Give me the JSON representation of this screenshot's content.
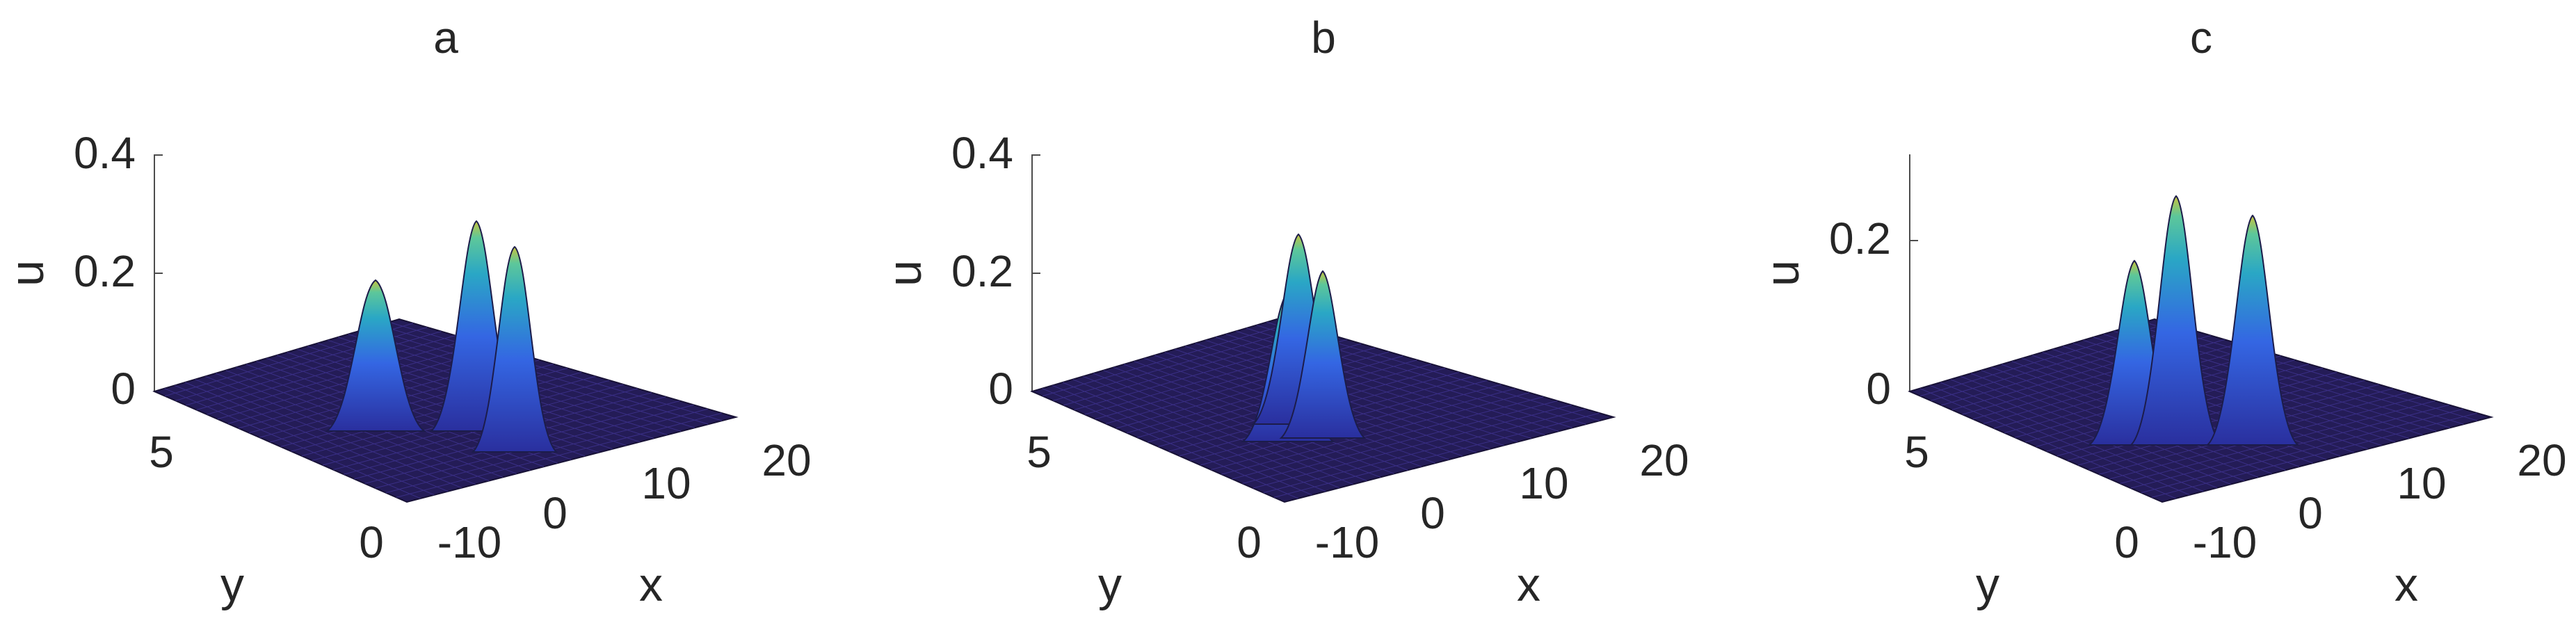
{
  "chart_data": [
    {
      "type": "surface",
      "title": "a",
      "xlabel": "x",
      "ylabel": "y",
      "zlabel": "u",
      "xlim": [
        -20,
        20
      ],
      "ylim": [
        0,
        6
      ],
      "zlim": [
        0,
        0.4
      ],
      "x_ticks": [
        "-10",
        "0",
        "10",
        "20"
      ],
      "y_ticks": [
        "0",
        "5"
      ],
      "z_ticks": [
        "0",
        "0.2",
        "0.4"
      ],
      "peaks": [
        {
          "x": -2,
          "y": 5.0,
          "u": 0.25
        },
        {
          "x": 7,
          "y": 4.6,
          "u": 0.37
        },
        {
          "x": 9,
          "y": 3.0,
          "u": 0.33
        }
      ]
    },
    {
      "type": "surface",
      "title": "b",
      "xlabel": "x",
      "ylabel": "y",
      "zlabel": "u",
      "xlim": [
        -20,
        20
      ],
      "ylim": [
        0,
        6
      ],
      "zlim": [
        0,
        0.4
      ],
      "x_ticks": [
        "-10",
        "0",
        "10",
        "20"
      ],
      "y_ticks": [
        "0",
        "5"
      ],
      "z_ticks": [
        "0",
        "0.2",
        "0.4"
      ],
      "peaks": [
        {
          "x": -2,
          "y": 3.0,
          "u": 0.23
        },
        {
          "x": 1,
          "y": 4.2,
          "u": 0.33
        },
        {
          "x": 2,
          "y": 2.2,
          "u": 0.26
        }
      ]
    },
    {
      "type": "surface",
      "title": "c",
      "xlabel": "x",
      "ylabel": "y",
      "zlabel": "u",
      "xlim": [
        -20,
        20
      ],
      "ylim": [
        0,
        6
      ],
      "zlim": [
        0,
        0.3
      ],
      "x_ticks": [
        "-10",
        "0",
        "10",
        "20"
      ],
      "y_ticks": [
        "0",
        "5"
      ],
      "z_ticks": [
        "0",
        "0.2"
      ],
      "peaks": [
        {
          "x": -3,
          "y": 3.0,
          "u": 0.24
        },
        {
          "x": 2,
          "y": 4.5,
          "u": 0.28
        },
        {
          "x": 7,
          "y": 1.6,
          "u": 0.26
        }
      ]
    }
  ]
}
